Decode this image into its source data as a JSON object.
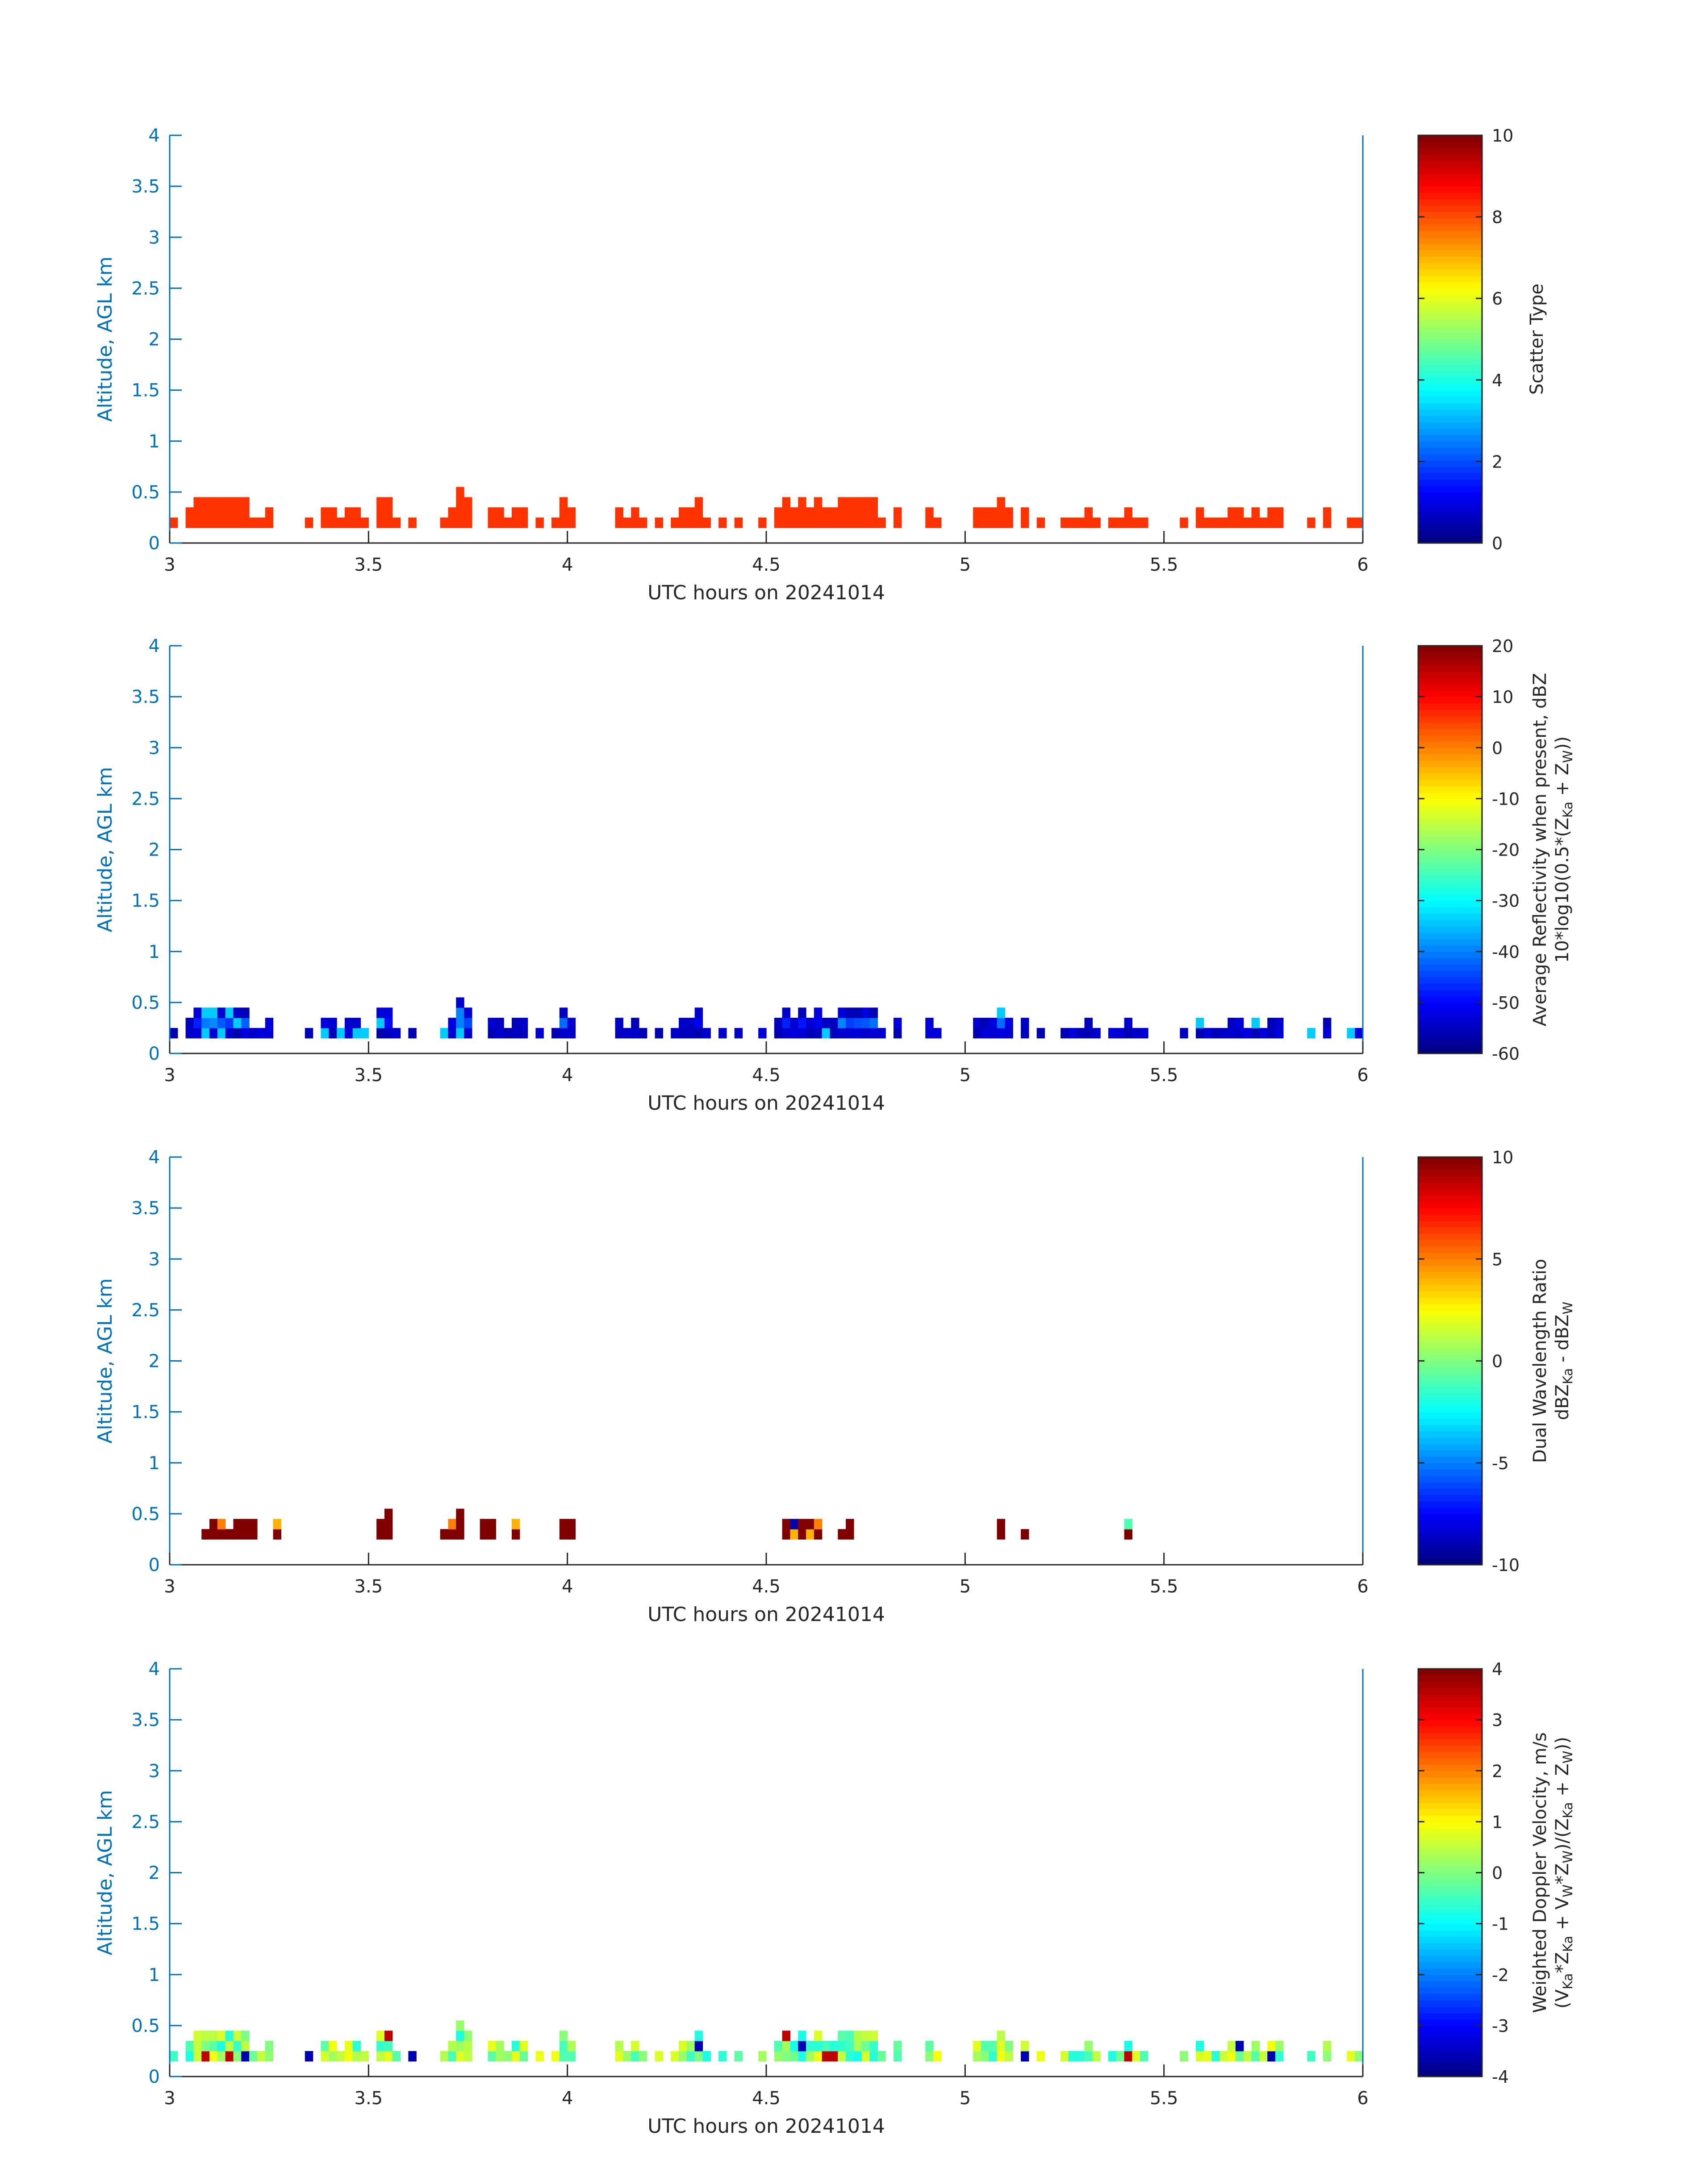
{
  "colors": {
    "axis_blue": "#0072BD",
    "axis_black": "#262626",
    "scatter_type_fill": "#FF3300"
  },
  "chart_data": [
    {
      "type": "heatmap",
      "title": "",
      "xlabel": "UTC hours on 20241014",
      "ylabel": "Altitude, AGL km",
      "xlim": [
        3,
        6
      ],
      "ylim": [
        0,
        4
      ],
      "x_ticks": [
        "3",
        "3.5",
        "4",
        "4.5",
        "5",
        "5.5",
        "6"
      ],
      "y_ticks": [
        "0",
        "0.5",
        "1",
        "1.5",
        "2",
        "2.5",
        "3",
        "3.5",
        "4"
      ],
      "colorbar": {
        "label": "Scatter Type",
        "label_sub": "",
        "clim": [
          0,
          10
        ],
        "ticks": [
          "0",
          "2",
          "4",
          "6",
          "8",
          "10"
        ],
        "colormap": "jet"
      },
      "field": "scatter_type",
      "value_note": "all echoes plotted at value 8.5",
      "x_bin_hours": 0.02,
      "y_bin_km": 0.1,
      "columns": [
        {
          "x": 3.0,
          "top": 0.2
        },
        {
          "x": 3.04,
          "top": 0.3
        },
        {
          "x": 3.06,
          "top": 0.4
        },
        {
          "x": 3.08,
          "top": 0.4
        },
        {
          "x": 3.1,
          "top": 0.4
        },
        {
          "x": 3.12,
          "top": 0.4
        },
        {
          "x": 3.14,
          "top": 0.4
        },
        {
          "x": 3.16,
          "top": 0.4
        },
        {
          "x": 3.18,
          "top": 0.4
        },
        {
          "x": 3.2,
          "top": 0.2
        },
        {
          "x": 3.22,
          "top": 0.2
        },
        {
          "x": 3.24,
          "top": 0.3
        },
        {
          "x": 3.34,
          "top": 0.2
        },
        {
          "x": 3.38,
          "top": 0.3
        },
        {
          "x": 3.4,
          "top": 0.3
        },
        {
          "x": 3.42,
          "top": 0.2
        },
        {
          "x": 3.44,
          "top": 0.3
        },
        {
          "x": 3.46,
          "top": 0.3
        },
        {
          "x": 3.48,
          "top": 0.2
        },
        {
          "x": 3.52,
          "top": 0.4
        },
        {
          "x": 3.54,
          "top": 0.4
        },
        {
          "x": 3.56,
          "top": 0.2
        },
        {
          "x": 3.6,
          "top": 0.2
        },
        {
          "x": 3.68,
          "top": 0.2
        },
        {
          "x": 3.7,
          "top": 0.3
        },
        {
          "x": 3.72,
          "top": 0.5
        },
        {
          "x": 3.74,
          "top": 0.4
        },
        {
          "x": 3.8,
          "top": 0.3
        },
        {
          "x": 3.82,
          "top": 0.3
        },
        {
          "x": 3.84,
          "top": 0.2
        },
        {
          "x": 3.86,
          "top": 0.3
        },
        {
          "x": 3.88,
          "top": 0.3
        },
        {
          "x": 3.92,
          "top": 0.2
        },
        {
          "x": 3.96,
          "top": 0.2
        },
        {
          "x": 3.98,
          "top": 0.4
        },
        {
          "x": 4.0,
          "top": 0.3
        },
        {
          "x": 4.12,
          "top": 0.3
        },
        {
          "x": 4.14,
          "top": 0.2
        },
        {
          "x": 4.16,
          "top": 0.3
        },
        {
          "x": 4.18,
          "top": 0.2
        },
        {
          "x": 4.22,
          "top": 0.2
        },
        {
          "x": 4.26,
          "top": 0.2
        },
        {
          "x": 4.28,
          "top": 0.3
        },
        {
          "x": 4.3,
          "top": 0.3
        },
        {
          "x": 4.32,
          "top": 0.4
        },
        {
          "x": 4.34,
          "top": 0.2
        },
        {
          "x": 4.38,
          "top": 0.2
        },
        {
          "x": 4.42,
          "top": 0.2
        },
        {
          "x": 4.48,
          "top": 0.2
        },
        {
          "x": 4.52,
          "top": 0.3
        },
        {
          "x": 4.54,
          "top": 0.4
        },
        {
          "x": 4.56,
          "top": 0.3
        },
        {
          "x": 4.58,
          "top": 0.4
        },
        {
          "x": 4.6,
          "top": 0.3
        },
        {
          "x": 4.62,
          "top": 0.4
        },
        {
          "x": 4.64,
          "top": 0.3
        },
        {
          "x": 4.66,
          "top": 0.3
        },
        {
          "x": 4.68,
          "top": 0.4
        },
        {
          "x": 4.7,
          "top": 0.4
        },
        {
          "x": 4.72,
          "top": 0.4
        },
        {
          "x": 4.74,
          "top": 0.4
        },
        {
          "x": 4.76,
          "top": 0.4
        },
        {
          "x": 4.78,
          "top": 0.2
        },
        {
          "x": 4.82,
          "top": 0.3
        },
        {
          "x": 4.9,
          "top": 0.3
        },
        {
          "x": 4.92,
          "top": 0.2
        },
        {
          "x": 5.02,
          "top": 0.3
        },
        {
          "x": 5.04,
          "top": 0.3
        },
        {
          "x": 5.06,
          "top": 0.3
        },
        {
          "x": 5.08,
          "top": 0.4
        },
        {
          "x": 5.1,
          "top": 0.3
        },
        {
          "x": 5.14,
          "top": 0.3
        },
        {
          "x": 5.18,
          "top": 0.2
        },
        {
          "x": 5.24,
          "top": 0.2
        },
        {
          "x": 5.26,
          "top": 0.2
        },
        {
          "x": 5.28,
          "top": 0.2
        },
        {
          "x": 5.3,
          "top": 0.3
        },
        {
          "x": 5.32,
          "top": 0.2
        },
        {
          "x": 5.36,
          "top": 0.2
        },
        {
          "x": 5.38,
          "top": 0.2
        },
        {
          "x": 5.4,
          "top": 0.3
        },
        {
          "x": 5.42,
          "top": 0.2
        },
        {
          "x": 5.44,
          "top": 0.2
        },
        {
          "x": 5.54,
          "top": 0.2
        },
        {
          "x": 5.58,
          "top": 0.3
        },
        {
          "x": 5.6,
          "top": 0.2
        },
        {
          "x": 5.62,
          "top": 0.2
        },
        {
          "x": 5.64,
          "top": 0.2
        },
        {
          "x": 5.66,
          "top": 0.3
        },
        {
          "x": 5.68,
          "top": 0.3
        },
        {
          "x": 5.7,
          "top": 0.2
        },
        {
          "x": 5.72,
          "top": 0.3
        },
        {
          "x": 5.74,
          "top": 0.2
        },
        {
          "x": 5.76,
          "top": 0.3
        },
        {
          "x": 5.78,
          "top": 0.3
        },
        {
          "x": 5.86,
          "top": 0.2
        },
        {
          "x": 5.9,
          "top": 0.3
        },
        {
          "x": 5.96,
          "top": 0.2
        },
        {
          "x": 5.98,
          "top": 0.2
        }
      ]
    },
    {
      "type": "heatmap",
      "title": "",
      "xlabel": "UTC hours on 20241014",
      "ylabel": "Altitude, AGL km",
      "xlim": [
        3,
        6
      ],
      "ylim": [
        0,
        4
      ],
      "x_ticks": [
        "3",
        "3.5",
        "4",
        "4.5",
        "5",
        "5.5",
        "6"
      ],
      "y_ticks": [
        "0",
        "0.5",
        "1",
        "1.5",
        "2",
        "2.5",
        "3",
        "3.5",
        "4"
      ],
      "colorbar": {
        "label": "Average Reflectivity when present, dBZ",
        "label_sub": "10*log10(0.5*(Z_Ka + Z_W))",
        "clim": [
          -60,
          20
        ],
        "ticks": [
          "-60",
          "-50",
          "-40",
          "-30",
          "-20",
          "-10",
          "0",
          "10",
          "20"
        ],
        "colormap": "jet"
      },
      "field": "reflectivity_dBZ",
      "value_note": "echoes mostly -55 to -40 dBZ; weakest at column edges",
      "x_bin_hours": 0.02,
      "y_bin_km": 0.1
    },
    {
      "type": "heatmap",
      "title": "",
      "xlabel": "UTC hours on 20241014",
      "ylabel": "Altitude, AGL km",
      "xlim": [
        3,
        6
      ],
      "ylim": [
        0,
        4
      ],
      "x_ticks": [
        "3",
        "3.5",
        "4",
        "4.5",
        "5",
        "5.5",
        "6"
      ],
      "y_ticks": [
        "0",
        "0.5",
        "1",
        "1.5",
        "2",
        "2.5",
        "3",
        "3.5",
        "4"
      ],
      "colorbar": {
        "label": "Dual Wavelength Ratio",
        "label_sub": "dBZ_Ka - dBZ_W",
        "clim": [
          -10,
          10
        ],
        "ticks": [
          "-10",
          "-5",
          "0",
          "5",
          "10"
        ],
        "colormap": "jet"
      },
      "field": "dual_wavelength_ratio_dB",
      "x_bin_hours": 0.02,
      "y_bin_km": 0.1,
      "cells": [
        [
          3.08,
          0.3,
          10
        ],
        [
          3.1,
          0.3,
          10
        ],
        [
          3.1,
          0.4,
          10
        ],
        [
          3.12,
          0.3,
          10
        ],
        [
          3.12,
          0.4,
          5
        ],
        [
          3.14,
          0.3,
          10
        ],
        [
          3.16,
          0.3,
          10
        ],
        [
          3.16,
          0.4,
          10
        ],
        [
          3.18,
          0.3,
          10
        ],
        [
          3.18,
          0.4,
          10
        ],
        [
          3.2,
          0.3,
          10
        ],
        [
          3.2,
          0.4,
          10
        ],
        [
          3.26,
          0.3,
          10
        ],
        [
          3.26,
          0.4,
          4
        ],
        [
          3.52,
          0.3,
          10
        ],
        [
          3.52,
          0.4,
          10
        ],
        [
          3.54,
          0.3,
          10
        ],
        [
          3.54,
          0.4,
          10
        ],
        [
          3.54,
          0.5,
          10
        ],
        [
          3.68,
          0.3,
          10
        ],
        [
          3.7,
          0.3,
          10
        ],
        [
          3.7,
          0.4,
          5
        ],
        [
          3.72,
          0.3,
          10
        ],
        [
          3.72,
          0.4,
          10
        ],
        [
          3.72,
          0.5,
          10
        ],
        [
          3.78,
          0.3,
          10
        ],
        [
          3.78,
          0.4,
          10
        ],
        [
          3.8,
          0.3,
          10
        ],
        [
          3.8,
          0.4,
          10
        ],
        [
          3.86,
          0.3,
          10
        ],
        [
          3.86,
          0.4,
          4
        ],
        [
          3.98,
          0.3,
          10
        ],
        [
          3.98,
          0.4,
          10
        ],
        [
          4.0,
          0.3,
          10
        ],
        [
          4.0,
          0.4,
          10
        ],
        [
          4.54,
          0.3,
          10
        ],
        [
          4.54,
          0.4,
          10
        ],
        [
          4.56,
          0.3,
          4
        ],
        [
          4.56,
          0.4,
          -9
        ],
        [
          4.58,
          0.3,
          10
        ],
        [
          4.58,
          0.4,
          10
        ],
        [
          4.6,
          0.3,
          4
        ],
        [
          4.6,
          0.4,
          10
        ],
        [
          4.62,
          0.3,
          10
        ],
        [
          4.62,
          0.4,
          5
        ],
        [
          4.68,
          0.3,
          10
        ],
        [
          4.7,
          0.3,
          10
        ],
        [
          4.7,
          0.4,
          10
        ],
        [
          5.08,
          0.3,
          10
        ],
        [
          5.08,
          0.4,
          10
        ],
        [
          5.14,
          0.3,
          10
        ],
        [
          5.4,
          0.3,
          10
        ],
        [
          5.4,
          0.4,
          -1
        ]
      ]
    },
    {
      "type": "heatmap",
      "title": "",
      "xlabel": "UTC hours on 20241014",
      "ylabel": "Altitude, AGL km",
      "xlim": [
        3,
        6
      ],
      "ylim": [
        0,
        4
      ],
      "x_ticks": [
        "3",
        "3.5",
        "4",
        "4.5",
        "5",
        "5.5",
        "6"
      ],
      "y_ticks": [
        "0",
        "0.5",
        "1",
        "1.5",
        "2",
        "2.5",
        "3",
        "3.5",
        "4"
      ],
      "colorbar": {
        "label": "Weighted Doppler Velocity, m/s",
        "label_sub": "(V_Ka*Z_Ka + V_W*Z_W)/(Z_Ka + Z_W))",
        "clim": [
          -4,
          4
        ],
        "ticks": [
          "-4",
          "-3",
          "-2",
          "-1",
          "0",
          "1",
          "2",
          "3",
          "4"
        ],
        "colormap": "jet"
      },
      "field": "doppler_velocity_ms",
      "value_note": "echoes mostly -1 to +1 m/s",
      "x_bin_hours": 0.02,
      "y_bin_km": 0.1
    }
  ]
}
